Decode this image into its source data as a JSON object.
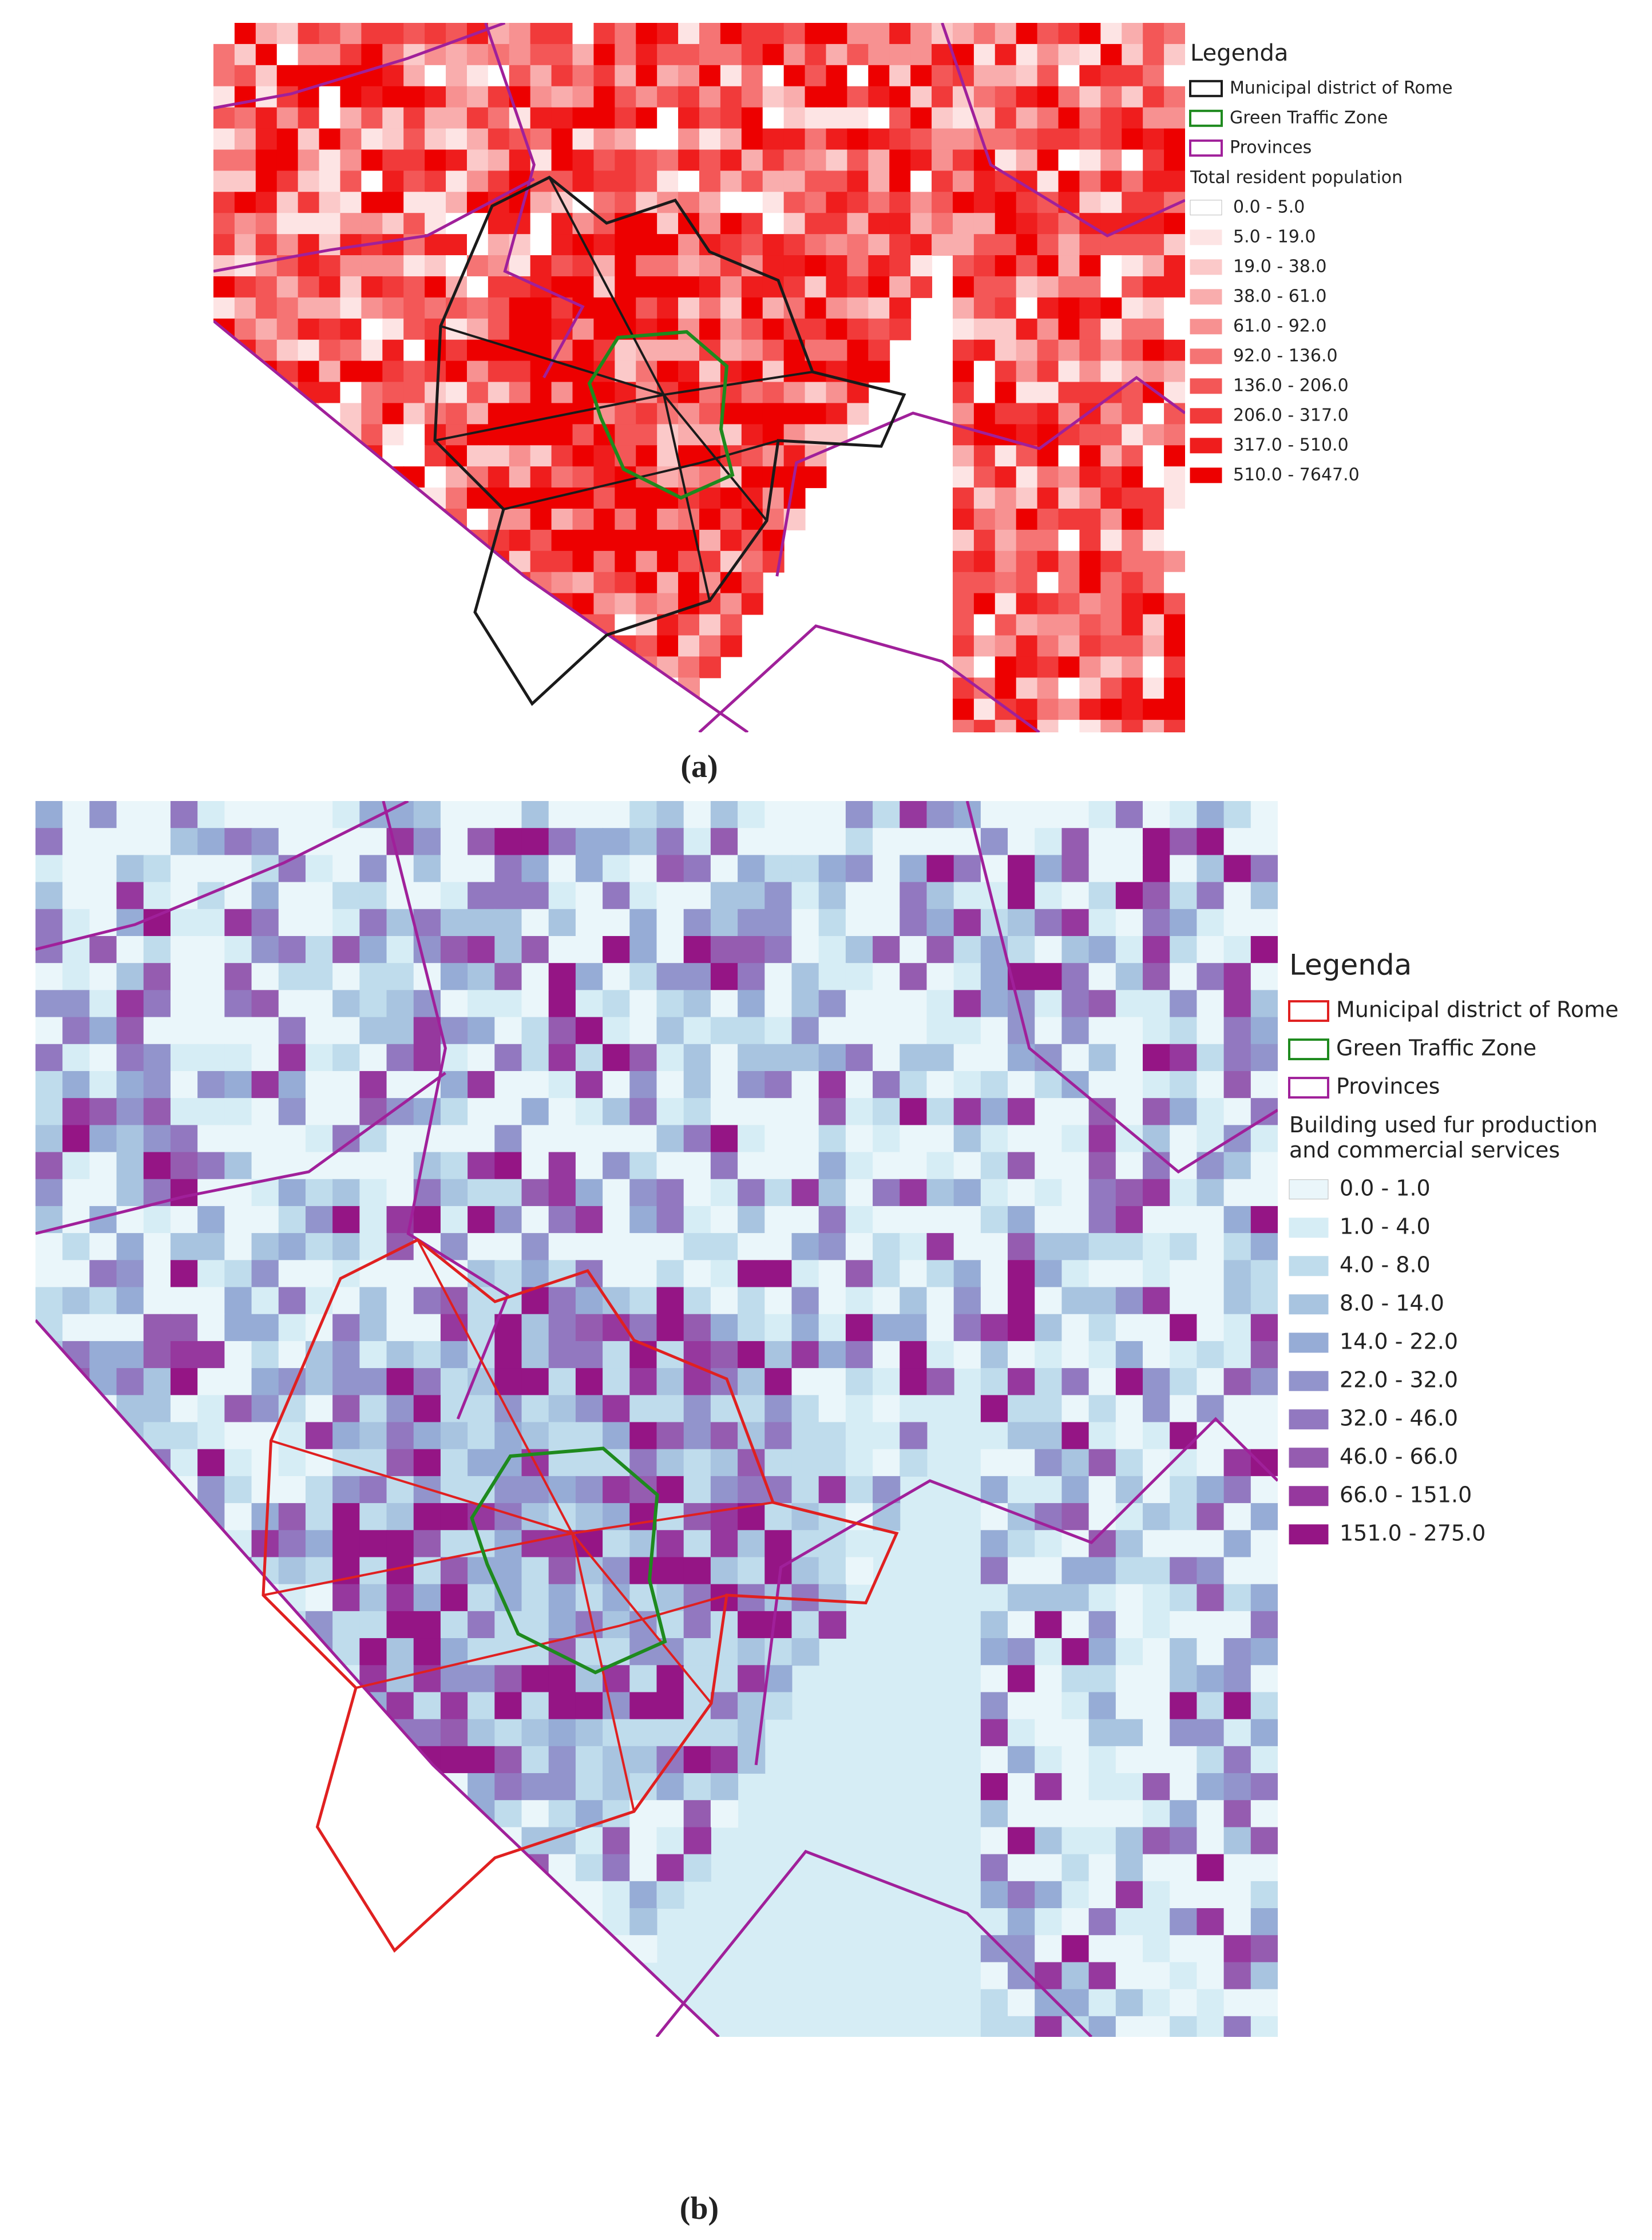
{
  "panels": [
    {
      "legend": {
        "title": "Legenda",
        "layers": [
          {
            "label": "Municipal district of Rome",
            "color": "#1a1a1a"
          },
          {
            "label": "Green Traffic Zone",
            "color": "#1e8a1e"
          },
          {
            "label": "Provinces",
            "color": "#a0209a"
          }
        ],
        "classification_title": "Total resident population",
        "classes": [
          {
            "label": "0.0 - 5.0",
            "color": "#ffffff"
          },
          {
            "label": "5.0 - 19.0",
            "color": "#fde4e4"
          },
          {
            "label": "19.0 - 38.0",
            "color": "#fbc9c9"
          },
          {
            "label": "38.0 - 61.0",
            "color": "#f9adad"
          },
          {
            "label": "61.0 - 92.0",
            "color": "#f79191"
          },
          {
            "label": "92.0 - 136.0",
            "color": "#f57474"
          },
          {
            "label": "136.0 - 206.0",
            "color": "#f35757"
          },
          {
            "label": "206.0 - 317.0",
            "color": "#f13a3a"
          },
          {
            "label": "317.0 - 510.0",
            "color": "#ef1d1d"
          },
          {
            "label": "510.0 - 7647.0",
            "color": "#ed0000"
          }
        ]
      },
      "caption": "(a)"
    },
    {
      "legend": {
        "title": "Legenda",
        "layers": [
          {
            "label": "Municipal district of Rome",
            "color": "#e02020"
          },
          {
            "label": "Green Traffic Zone",
            "color": "#1e8a1e"
          },
          {
            "label": "Provinces",
            "color": "#a0209a"
          }
        ],
        "classification_title": "Building used fur production and commercial services",
        "classes": [
          {
            "label": "0.0 - 1.0",
            "color": "#eaf6fa"
          },
          {
            "label": "1.0 - 4.0",
            "color": "#d6edf5"
          },
          {
            "label": "4.0 - 8.0",
            "color": "#bfdcec"
          },
          {
            "label": "8.0 - 14.0",
            "color": "#a8c4e0"
          },
          {
            "label": "14.0 - 22.0",
            "color": "#96acd6"
          },
          {
            "label": "22.0 - 32.0",
            "color": "#9294cc"
          },
          {
            "label": "32.0 - 46.0",
            "color": "#9278c0"
          },
          {
            "label": "46.0 - 66.0",
            "color": "#955cb0"
          },
          {
            "label": "66.0 - 151.0",
            "color": "#96389e"
          },
          {
            "label": "151.0 - 275.0",
            "color": "#951585"
          }
        ]
      },
      "caption": "(b)"
    }
  ]
}
